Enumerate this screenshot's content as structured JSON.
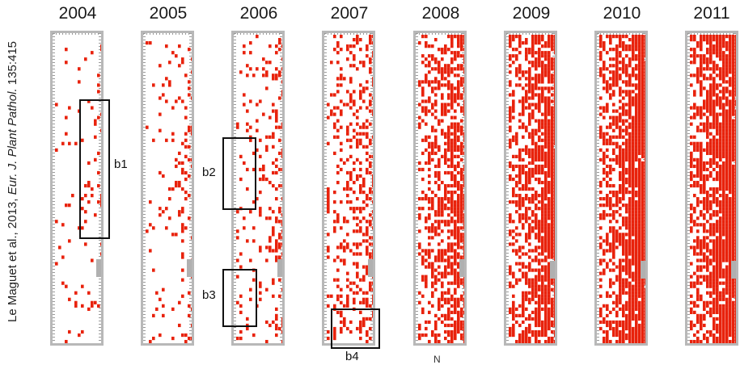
{
  "citation": {
    "prefix": "Le Maguet et al., 2013, ",
    "journal": "Eur. J. Plant Pathol.",
    "suffix": " 135:415"
  },
  "years": [
    "2004",
    "2005",
    "2006",
    "2007",
    "2008",
    "2009",
    "2010",
    "2011"
  ],
  "infection_density": [
    0.05,
    0.08,
    0.14,
    0.35,
    0.62,
    0.82,
    0.88,
    0.92
  ],
  "box_labels": [
    "b1",
    "b2",
    "b3",
    "b4"
  ],
  "compass_label": "N",
  "colors": {
    "infected": "#e8220c",
    "panel_border": "#b8b8b8",
    "background": "#ffffff",
    "box_outline": "#111111"
  }
}
